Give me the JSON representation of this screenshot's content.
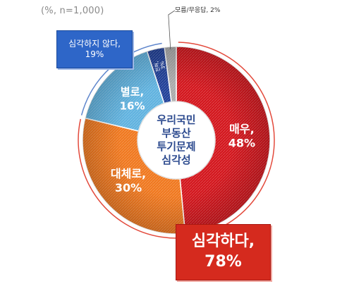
{
  "note": "(%, n=1,000)",
  "center_label": [
    "우리국민",
    "부동산",
    "투기문제",
    "심각성"
  ],
  "chart_data": {
    "type": "pie",
    "title": "",
    "slices": [
      {
        "label": "매우,",
        "value": 48,
        "value_text": "48%",
        "color": "#d3141b"
      },
      {
        "label": "대체로,",
        "value": 30,
        "value_text": "30%",
        "color": "#f0771d"
      },
      {
        "label": "별로,",
        "value": 16,
        "value_text": "16%",
        "color": "#5fb2df"
      },
      {
        "label": "전혀,",
        "value": 3,
        "value_text": "3%",
        "color": "#1f3f98"
      },
      {
        "label": "모름/무응답,",
        "value": 2,
        "value_text": "2%",
        "color": "#a9a9a9"
      }
    ],
    "groups": [
      {
        "label": "심각하다,",
        "value_text": "78%",
        "color": "#d52a1e"
      },
      {
        "label": "심각하지 않다,",
        "value_text": "19%",
        "color": "#2e66c8"
      }
    ],
    "small_label": "모름/무응답, 2%"
  }
}
